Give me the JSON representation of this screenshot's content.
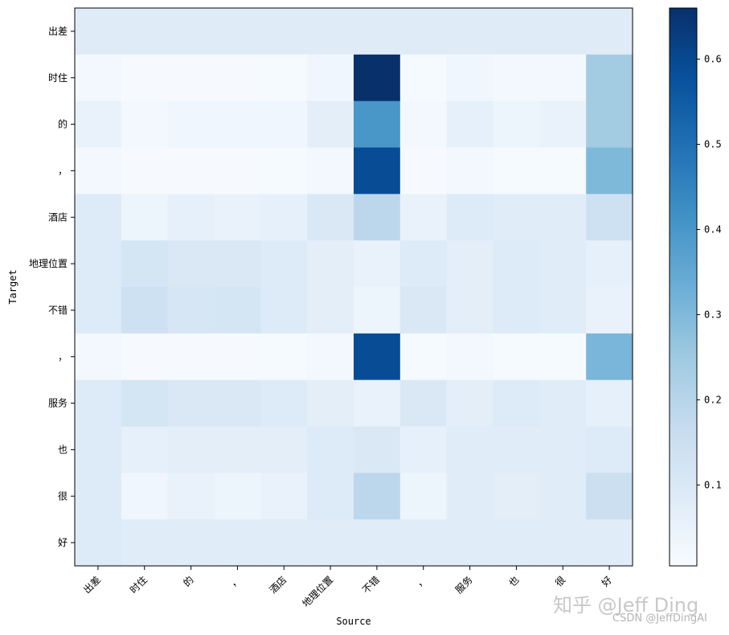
{
  "chart_data": {
    "type": "heatmap",
    "xlabel": "Source",
    "ylabel": "Target",
    "x_labels": [
      "出差",
      "时住",
      "的",
      "，",
      "酒店",
      "地理位置",
      "不错",
      "，",
      "服务",
      "也",
      "很",
      "好"
    ],
    "y_labels": [
      "出差",
      "时住",
      "的",
      "，",
      "酒店",
      "地理位置",
      "不错",
      "，",
      "服务",
      "也",
      "很",
      "好"
    ],
    "colormap": "Blues",
    "colorbar": {
      "range": [
        0.005,
        0.66
      ],
      "ticks": [
        "0.1",
        "0.2",
        "0.3",
        "0.4",
        "0.5",
        "0.6"
      ]
    },
    "values": [
      [
        0.083,
        0.083,
        0.083,
        0.083,
        0.083,
        0.083,
        0.083,
        0.083,
        0.083,
        0.083,
        0.083,
        0.083
      ],
      [
        0.02,
        0.008,
        0.008,
        0.008,
        0.01,
        0.03,
        0.66,
        0.01,
        0.03,
        0.02,
        0.02,
        0.24
      ],
      [
        0.05,
        0.02,
        0.03,
        0.03,
        0.03,
        0.07,
        0.4,
        0.02,
        0.06,
        0.04,
        0.05,
        0.24
      ],
      [
        0.02,
        0.008,
        0.008,
        0.008,
        0.01,
        0.02,
        0.59,
        0.008,
        0.02,
        0.01,
        0.01,
        0.3
      ],
      [
        0.09,
        0.04,
        0.06,
        0.05,
        0.06,
        0.1,
        0.19,
        0.05,
        0.09,
        0.08,
        0.08,
        0.14
      ],
      [
        0.09,
        0.12,
        0.1,
        0.1,
        0.09,
        0.07,
        0.05,
        0.09,
        0.07,
        0.09,
        0.08,
        0.06
      ],
      [
        0.09,
        0.14,
        0.11,
        0.12,
        0.09,
        0.07,
        0.04,
        0.1,
        0.07,
        0.09,
        0.08,
        0.05
      ],
      [
        0.02,
        0.008,
        0.008,
        0.008,
        0.01,
        0.02,
        0.59,
        0.01,
        0.02,
        0.01,
        0.01,
        0.31
      ],
      [
        0.09,
        0.12,
        0.1,
        0.1,
        0.09,
        0.07,
        0.05,
        0.1,
        0.07,
        0.09,
        0.08,
        0.06
      ],
      [
        0.09,
        0.06,
        0.07,
        0.07,
        0.07,
        0.09,
        0.1,
        0.06,
        0.08,
        0.08,
        0.08,
        0.09
      ],
      [
        0.09,
        0.03,
        0.05,
        0.04,
        0.05,
        0.09,
        0.19,
        0.04,
        0.08,
        0.07,
        0.08,
        0.15
      ],
      [
        0.09,
        0.08,
        0.08,
        0.08,
        0.08,
        0.08,
        0.08,
        0.08,
        0.08,
        0.08,
        0.08,
        0.08
      ]
    ]
  },
  "watermark": {
    "main": "知乎 @Jeff Ding",
    "sub": "CSDN @JeffDingAI"
  }
}
